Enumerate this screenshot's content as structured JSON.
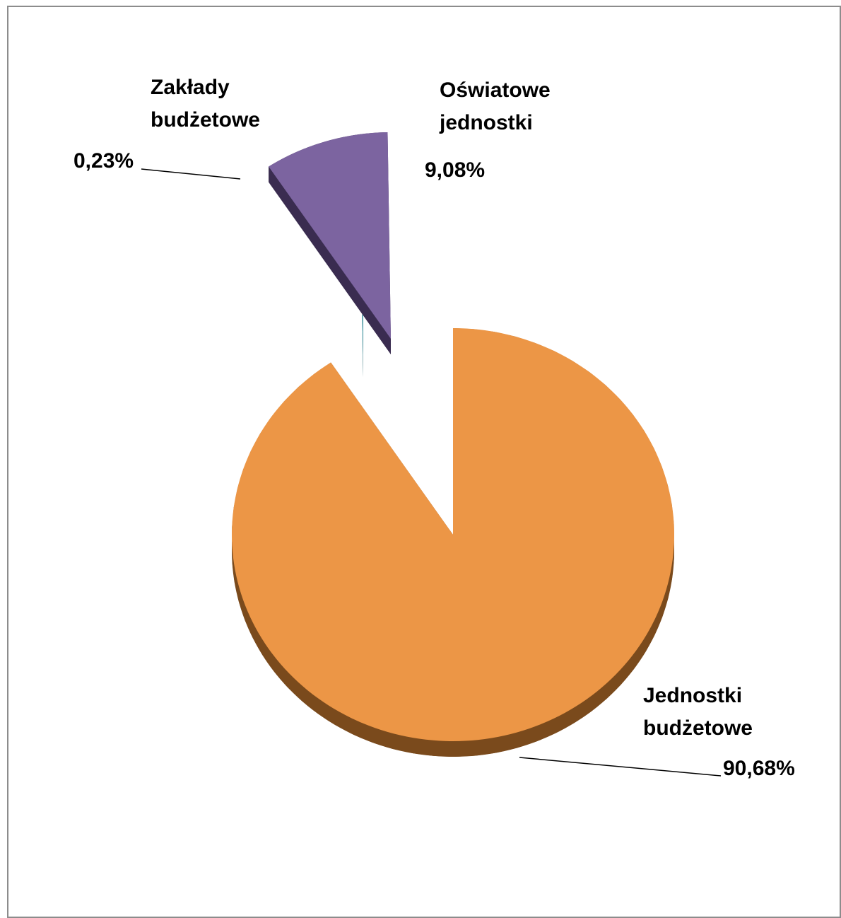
{
  "chart_data": {
    "type": "pie",
    "style": "3d-exploded",
    "slices": [
      {
        "label_lines": [
          "Jednostki",
          "budżetowe"
        ],
        "value": 90.68,
        "value_label": "90,68%",
        "color": "#ec9646",
        "side_color": "#7a4a1c"
      },
      {
        "label_lines": [
          "Oświatowe",
          "jednostki"
        ],
        "value": 9.08,
        "value_label": "9,08%",
        "color": "#7c64a0",
        "side_color": "#3a2c50"
      },
      {
        "label_lines": [
          "Zakłady",
          "budżetowe"
        ],
        "value": 0.23,
        "value_label": "0,23%",
        "color": "#2e9aaa",
        "side_color": "#145a64"
      }
    ],
    "legend": "none",
    "title": ""
  }
}
